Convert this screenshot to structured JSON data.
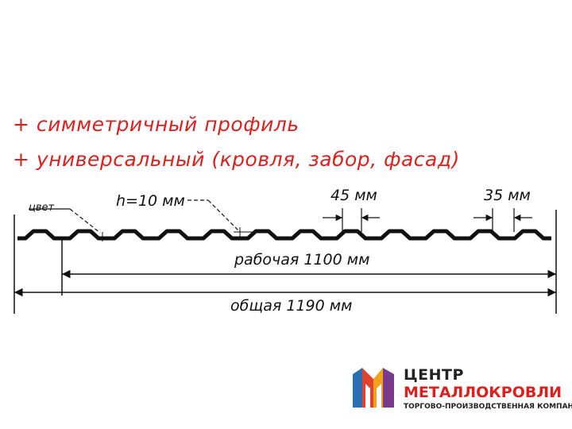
{
  "features": [
    "+ симметричный профиль",
    "+ универсальный (кровля, забор, фасад)"
  ],
  "labels": {
    "color": "цвет",
    "height": "h=10 мм",
    "rib": "45 мм",
    "valley": "35 мм",
    "working": "рабочая 1100 мм",
    "total": "общая 1190 мм"
  },
  "logo": {
    "line1": "ЦЕНТР",
    "line2": "МЕТАЛЛОКРОВЛИ",
    "tagline": "ТОРГОВО-ПРОИЗВОДСТВЕННАЯ КОМПАНИЯ"
  },
  "colors": {
    "accent": "#d9211f",
    "profile": "#111111"
  }
}
